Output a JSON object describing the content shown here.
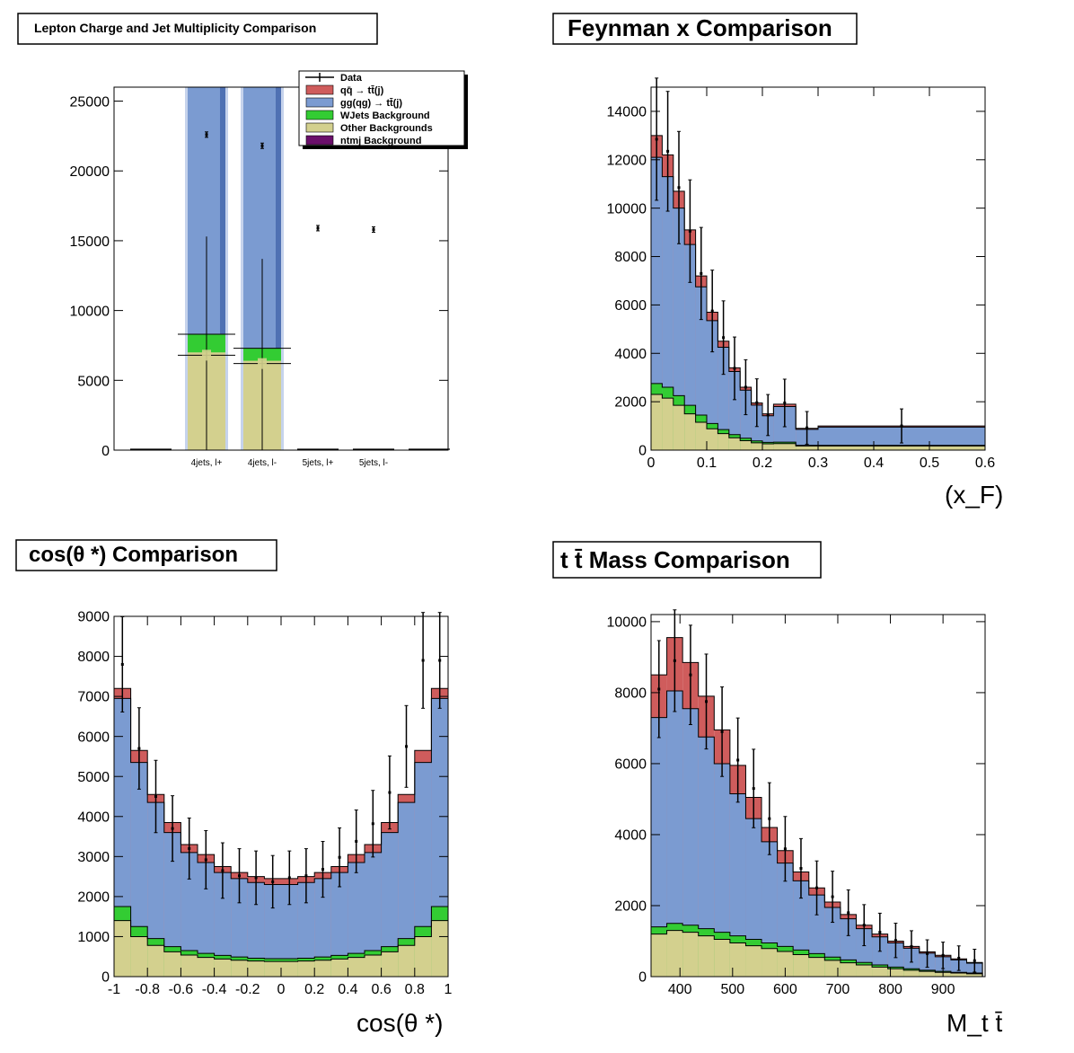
{
  "colors": {
    "qqbar": "#cf5c5c",
    "gg": "#7b9bd1",
    "wjets": "#33cc33",
    "other": "#d3d08e",
    "ntmj": "#6b0f6b",
    "data": "#000000"
  },
  "panels": [
    {
      "title": "Lepton Charge and Jet Multiplicity Comparison",
      "legend": [
        {
          "label": "Data",
          "key": "data"
        },
        {
          "label": "qq̄ → tt̄(j)",
          "key": "qqbar"
        },
        {
          "label": "gg(qg) → tt̄(j)",
          "key": "gg"
        },
        {
          "label": "WJets Background",
          "key": "wjets"
        },
        {
          "label": "Other Backgrounds",
          "key": "other"
        },
        {
          "label": "ntmj Background",
          "key": "ntmj"
        }
      ],
      "chart_data": {
        "type": "bar",
        "categories": [
          "",
          "4jets, l+",
          "4jets, l-",
          "5jets, l+",
          "5jets, l-",
          ""
        ],
        "ylim": [
          0,
          26000
        ],
        "yticks": [
          "0",
          "5000",
          "10000",
          "15000",
          "20000",
          "25000"
        ],
        "stack_total": [
          0,
          26000,
          26000,
          0,
          0,
          0
        ],
        "stack_other": [
          0,
          7000,
          6400,
          0,
          0,
          0
        ],
        "stack_wjets_top": [
          0,
          8300,
          7300,
          0,
          0,
          0
        ],
        "data": [
          {
            "x": 1,
            "y": 22600,
            "err": 150
          },
          {
            "x": 2,
            "y": 21800,
            "err": 150
          },
          {
            "x": 3,
            "y": 15900,
            "err": 120
          },
          {
            "x": 4,
            "y": 15800,
            "err": 120
          }
        ],
        "extra_errors": [
          {
            "x": 1,
            "y": 8300,
            "lo": 0,
            "hi": 15300,
            "y2": 6800
          },
          {
            "x": 2,
            "y": 7300,
            "lo": 0,
            "hi": 13700,
            "y2": 6200
          }
        ]
      }
    },
    {
      "title": "Feynman x Comparison",
      "chart_data": {
        "type": "bar",
        "xlabel": "(x_F)",
        "xlim": [
          0,
          0.6
        ],
        "ylim": [
          0,
          15000
        ],
        "xticks": [
          "0",
          "0.1",
          "0.2",
          "0.3",
          "0.4",
          "0.5",
          "0.6"
        ],
        "yticks": [
          "0",
          "2000",
          "4000",
          "6000",
          "8000",
          "10000",
          "12000",
          "14000"
        ],
        "edges": [
          0,
          0.02,
          0.04,
          0.06,
          0.08,
          0.1,
          0.12,
          0.14,
          0.16,
          0.18,
          0.2,
          0.22,
          0.26,
          0.3,
          0.6
        ],
        "total": [
          13000,
          12200,
          10700,
          9100,
          7200,
          5700,
          4500,
          3400,
          2600,
          1950,
          1500,
          1900,
          900,
          1000
        ],
        "gg": [
          12100,
          11300,
          10000,
          8500,
          6750,
          5350,
          4250,
          3250,
          2480,
          1860,
          1420,
          1800,
          860,
          950
        ],
        "wjets": [
          2750,
          2600,
          2250,
          1850,
          1450,
          1100,
          850,
          640,
          490,
          380,
          320,
          330,
          200,
          200
        ],
        "other": [
          2300,
          2150,
          1850,
          1500,
          1150,
          880,
          680,
          510,
          390,
          300,
          260,
          270,
          170,
          170
        ],
        "data": [
          12850,
          12350,
          10850,
          9050,
          7300,
          5750,
          4650,
          3380,
          2600,
          1960,
          1450,
          1950,
          920,
          1000
        ],
        "data_x": [
          0.01,
          0.03,
          0.05,
          0.07,
          0.09,
          0.11,
          0.13,
          0.15,
          0.17,
          0.19,
          0.21,
          0.24,
          0.28,
          0.45
        ]
      }
    },
    {
      "title": "cos(θ *) Comparison",
      "chart_data": {
        "type": "bar",
        "xlabel": "cos(θ *)",
        "xlim": [
          -1,
          1
        ],
        "ylim": [
          0,
          9000
        ],
        "xticks": [
          "-1",
          "-0.8",
          "-0.6",
          "-0.4",
          "-0.2",
          "0",
          "0.2",
          "0.4",
          "0.6",
          "0.8",
          "1"
        ],
        "yticks": [
          "0",
          "1000",
          "2000",
          "3000",
          "4000",
          "5000",
          "6000",
          "7000",
          "8000",
          "9000"
        ],
        "nbins": 20,
        "total": [
          7200,
          5650,
          4550,
          3850,
          3300,
          3050,
          2750,
          2600,
          2500,
          2450,
          2450,
          2500,
          2600,
          2750,
          3050,
          3300,
          3850,
          4550,
          5650,
          7200
        ],
        "gg": [
          6950,
          5350,
          4350,
          3600,
          3100,
          2850,
          2600,
          2450,
          2350,
          2300,
          2300,
          2350,
          2450,
          2600,
          2850,
          3100,
          3600,
          4350,
          5350,
          6950
        ],
        "wjets": [
          1750,
          1250,
          950,
          750,
          650,
          580,
          530,
          490,
          460,
          450,
          450,
          460,
          490,
          530,
          580,
          650,
          750,
          950,
          1250,
          1750
        ],
        "other": [
          1400,
          1000,
          780,
          620,
          540,
          480,
          440,
          410,
          390,
          380,
          380,
          390,
          410,
          440,
          480,
          540,
          620,
          780,
          1000,
          1400
        ],
        "data": [
          7800,
          5700,
          4500,
          3700,
          3200,
          2920,
          2650,
          2520,
          2470,
          2370,
          2470,
          2520,
          2680,
          2980,
          3380,
          3820,
          4600,
          5750,
          7900,
          7900
        ]
      }
    },
    {
      "title": "t t̄ Mass Comparison",
      "chart_data": {
        "type": "bar",
        "xlabel": "M_t t̄",
        "xlim": [
          345,
          980
        ],
        "ylim": [
          0,
          10200
        ],
        "xticks": [
          "400",
          "500",
          "600",
          "700",
          "800",
          "900"
        ],
        "yticks": [
          "0",
          "2000",
          "4000",
          "6000",
          "8000",
          "10000"
        ],
        "bin_start": 345,
        "bin_width": 30,
        "nbins": 21,
        "total": [
          8500,
          9550,
          8850,
          7900,
          6950,
          5950,
          5050,
          4200,
          3550,
          2950,
          2500,
          2100,
          1750,
          1450,
          1200,
          1000,
          850,
          700,
          600,
          500,
          400
        ],
        "gg": [
          7300,
          8050,
          7550,
          6750,
          6000,
          5150,
          4450,
          3800,
          3200,
          2700,
          2300,
          1950,
          1630,
          1350,
          1120,
          950,
          800,
          660,
          560,
          470,
          380
        ],
        "wjets": [
          1400,
          1500,
          1450,
          1350,
          1250,
          1150,
          1050,
          950,
          850,
          750,
          650,
          550,
          470,
          400,
          330,
          270,
          220,
          180,
          150,
          120,
          100
        ],
        "other": [
          1200,
          1300,
          1250,
          1150,
          1050,
          950,
          870,
          790,
          710,
          620,
          540,
          460,
          390,
          330,
          270,
          220,
          180,
          150,
          120,
          100,
          80
        ],
        "data": [
          8100,
          8900,
          8500,
          7750,
          6900,
          6100,
          5300,
          4450,
          3600,
          3050,
          2500,
          2250,
          1800,
          1450,
          1250,
          1020,
          850,
          650,
          600,
          520,
          450
        ]
      }
    }
  ]
}
